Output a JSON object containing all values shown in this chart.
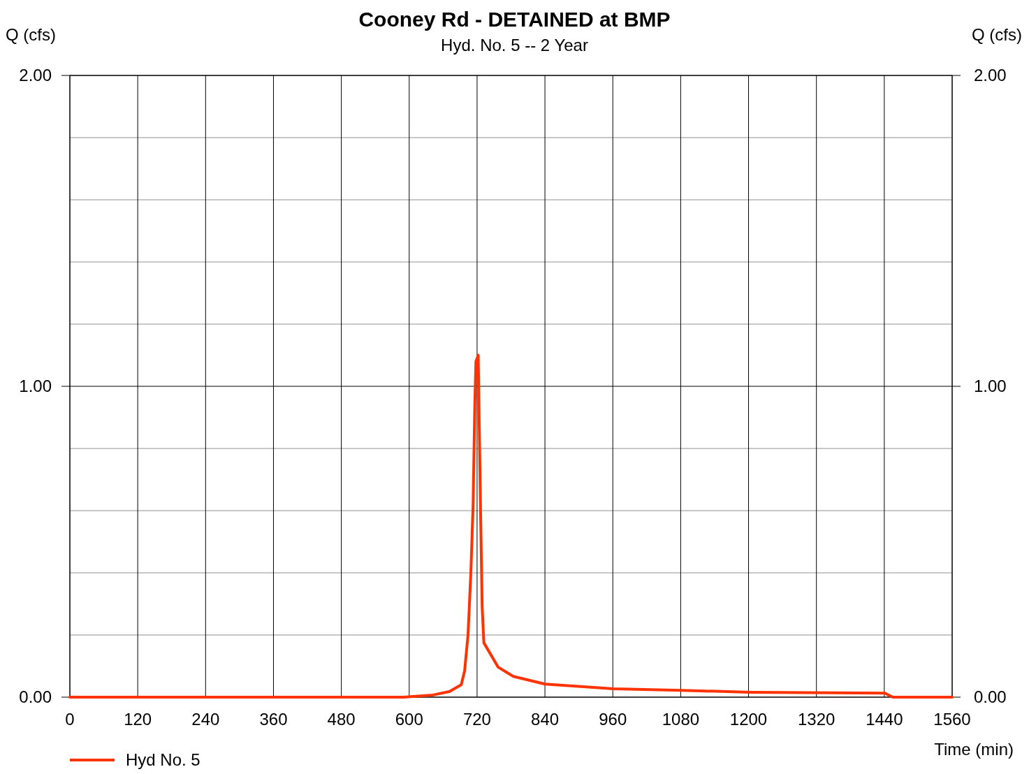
{
  "chart_data": {
    "type": "line",
    "title": "Cooney Rd - DETAINED at BMP",
    "subtitle": "Hyd. No. 5 -- 2 Year",
    "xlabel": "Time (min)",
    "ylabel": "Q (cfs)",
    "y2label": "Q (cfs)",
    "xlim": [
      0,
      1560
    ],
    "xticks": [
      0,
      120,
      240,
      360,
      480,
      600,
      720,
      840,
      960,
      1080,
      1200,
      1320,
      1440,
      1560
    ],
    "ylim": [
      0,
      2
    ],
    "yticks": [
      {
        "value": 0,
        "label": "0.00"
      },
      {
        "value": 0.2,
        "label": null
      },
      {
        "value": 0.4,
        "label": null
      },
      {
        "value": 0.6,
        "label": null
      },
      {
        "value": 0.8,
        "label": null
      },
      {
        "value": 1,
        "label": "1.00"
      },
      {
        "value": 1.2,
        "label": null
      },
      {
        "value": 1.4,
        "label": null
      },
      {
        "value": 1.6,
        "label": null
      },
      {
        "value": 1.8,
        "label": null
      },
      {
        "value": 2,
        "label": "2.00"
      }
    ],
    "y2lim": [
      0,
      2
    ],
    "y2ticks": [
      {
        "value": 0,
        "label": "0.00"
      },
      {
        "value": 1,
        "label": "1.00"
      },
      {
        "value": 2,
        "label": "2.00"
      }
    ],
    "grid": true,
    "legend": "bottom left",
    "marker": "none",
    "line_style": "solid",
    "series": [
      {
        "name": "Hyd No. 5",
        "color": "#ff3300",
        "x": [
          0,
          590,
          642,
          671,
          692,
          698,
          704,
          709,
          713,
          716,
          718,
          722,
          726,
          729,
          732,
          757,
          784,
          840,
          961,
          1081,
          1202,
          1441,
          1455,
          1560
        ],
        "values": [
          0,
          0,
          0.007,
          0.018,
          0.04,
          0.085,
          0.2,
          0.4,
          0.62,
          0.94,
          1.08,
          1.1,
          0.62,
          0.29,
          0.175,
          0.097,
          0.067,
          0.042,
          0.027,
          0.022,
          0.016,
          0.013,
          0,
          0
        ]
      }
    ]
  }
}
